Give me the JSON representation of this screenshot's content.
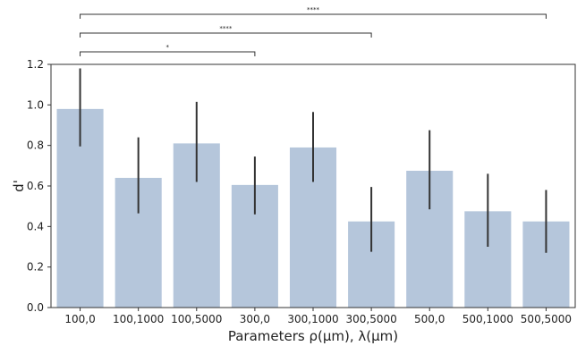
{
  "chart_data": {
    "type": "bar",
    "categories": [
      "100,0",
      "100,1000",
      "100,5000",
      "300,0",
      "300,1000",
      "300,5000",
      "500,0",
      "500,1000",
      "500,5000"
    ],
    "values": [
      0.98,
      0.64,
      0.81,
      0.605,
      0.79,
      0.425,
      0.675,
      0.475,
      0.425
    ],
    "error_low": [
      0.795,
      0.465,
      0.62,
      0.46,
      0.62,
      0.275,
      0.485,
      0.3,
      0.27
    ],
    "error_high": [
      1.18,
      0.84,
      1.015,
      0.745,
      0.965,
      0.595,
      0.875,
      0.66,
      0.58
    ],
    "xlabel": "Parameters ρ(μm), λ(μm)",
    "ylabel": "d'",
    "ylim": [
      0,
      1.2
    ],
    "yticks": [
      0.0,
      0.2,
      0.4,
      0.6,
      0.8,
      1.0,
      1.2
    ],
    "ytick_labels": [
      "0.0",
      "0.2",
      "0.4",
      "0.6",
      "0.8",
      "1.0",
      "1.2"
    ],
    "grid": false,
    "bar_color": "#b5c6db",
    "error_color": "#333333",
    "significance": [
      {
        "from": 0,
        "to": 3,
        "label": "*"
      },
      {
        "from": 0,
        "to": 5,
        "label": "****"
      },
      {
        "from": 0,
        "to": 8,
        "label": "****"
      }
    ]
  }
}
